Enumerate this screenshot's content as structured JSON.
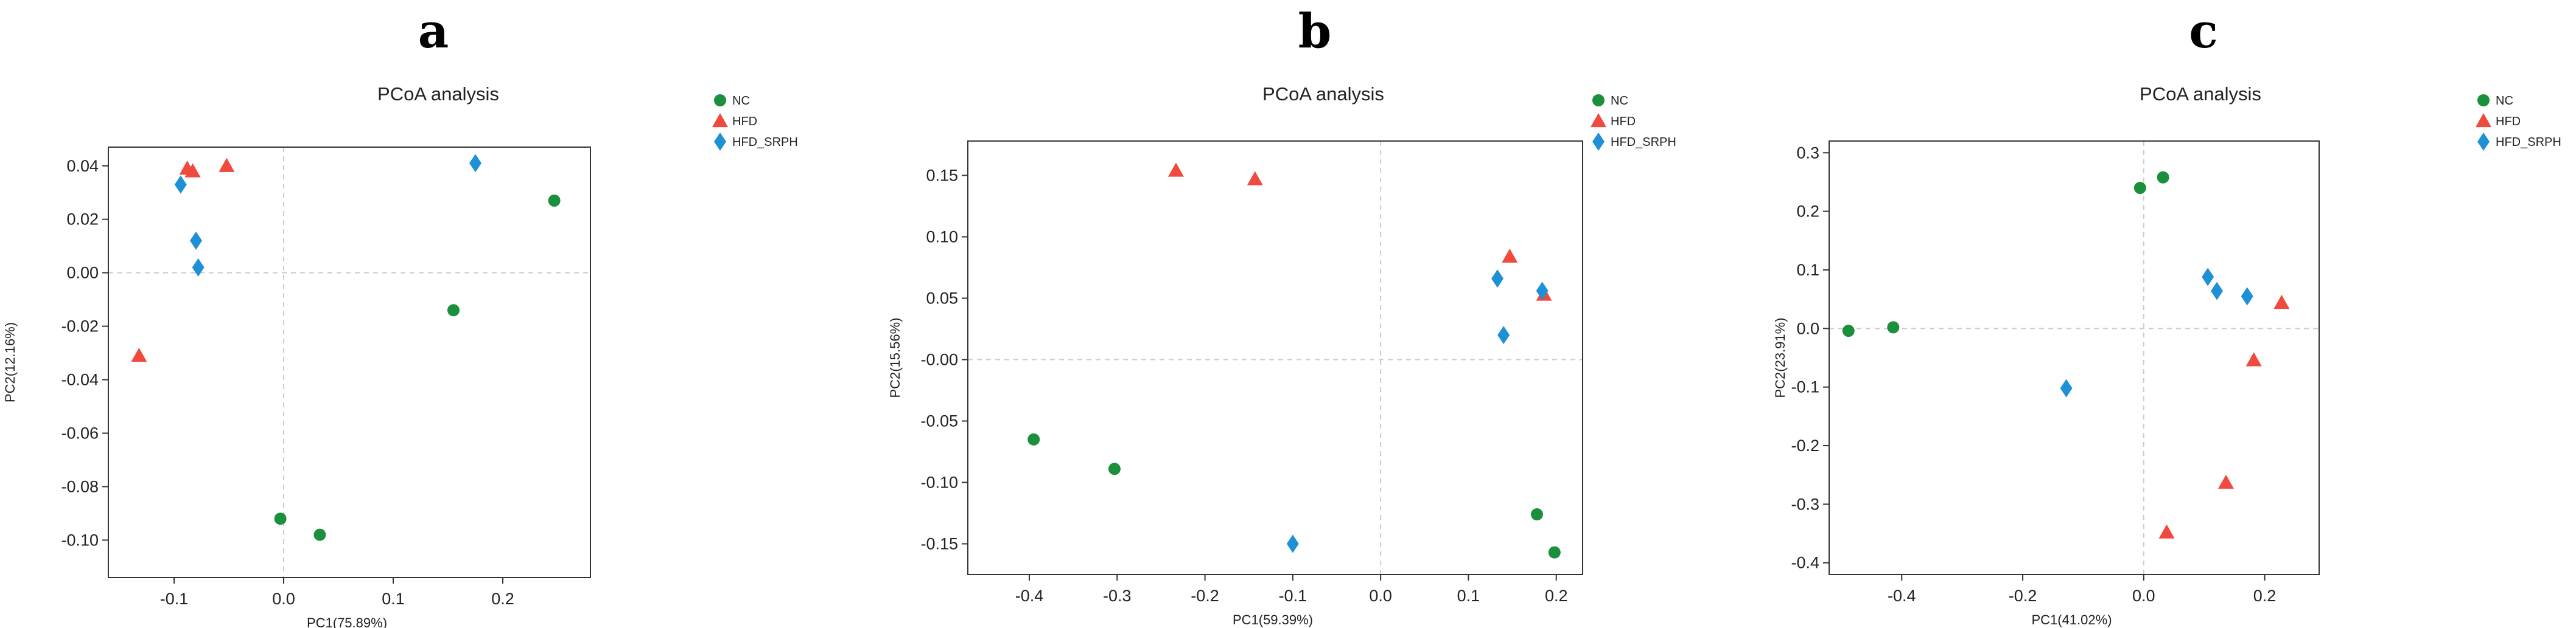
{
  "colors": {
    "NC": "#1a8f3c",
    "HFD": "#f04a3e",
    "HFD_SRPH": "#1e90d6"
  },
  "chart_data": [
    {
      "panel": "a",
      "type": "scatter",
      "title": "PCoA analysis",
      "xlabel": "PC1(75.89%)",
      "ylabel": "PC2(12.16%)",
      "xlim": [
        -0.16,
        0.28
      ],
      "ylim": [
        -0.114,
        0.047
      ],
      "xticks": [
        -0.1,
        0.0,
        0.1,
        0.2
      ],
      "xtick_labels": [
        "-0.1",
        "0.0",
        "0.1",
        "0.2"
      ],
      "yticks": [
        0.04,
        0.02,
        0.0,
        -0.02,
        -0.04,
        -0.06,
        -0.08,
        -0.1
      ],
      "ytick_labels": [
        "0.04",
        "0.02",
        "0.00",
        "-0.02",
        "-0.04",
        "-0.06",
        "-0.08",
        "-0.10"
      ],
      "legend": [
        "NC",
        "HFD",
        "HFD_SRPH"
      ],
      "series": [
        {
          "name": "NC",
          "marker": "circle",
          "points": [
            [
              0.247,
              0.027
            ],
            [
              0.155,
              -0.014
            ],
            [
              -0.003,
              -0.092
            ],
            [
              0.033,
              -0.098
            ]
          ]
        },
        {
          "name": "HFD",
          "marker": "triangle",
          "points": [
            [
              -0.088,
              0.039
            ],
            [
              -0.083,
              0.038
            ],
            [
              -0.052,
              0.04
            ],
            [
              -0.132,
              -0.031
            ]
          ]
        },
        {
          "name": "HFD_SRPH",
          "marker": "diamond",
          "points": [
            [
              -0.094,
              0.033
            ],
            [
              -0.08,
              0.012
            ],
            [
              -0.078,
              0.002
            ],
            [
              0.175,
              0.041
            ]
          ]
        }
      ]
    },
    {
      "panel": "b",
      "type": "scatter",
      "title": "PCoA analysis",
      "xlabel": "PC1(59.39%)",
      "ylabel": "PC2(15.56%)",
      "xlim": [
        -0.47,
        0.23
      ],
      "ylim": [
        -0.175,
        0.178
      ],
      "xticks": [
        -0.4,
        -0.3,
        -0.2,
        -0.1,
        0.0,
        0.1,
        0.2
      ],
      "xtick_labels": [
        "-0.4",
        "-0.3",
        "-0.2",
        "-0.1",
        "0.0",
        "0.1",
        "0.2"
      ],
      "yticks": [
        0.15,
        0.1,
        0.05,
        0.0,
        -0.05,
        -0.1,
        -0.15
      ],
      "ytick_labels": [
        "0.15",
        "0.10",
        "0.05",
        "-0.00",
        "-0.05",
        "-0.10",
        "-0.15"
      ],
      "legend": [
        "NC",
        "HFD",
        "HFD_SRPH"
      ],
      "series": [
        {
          "name": "NC",
          "marker": "circle",
          "points": [
            [
              -0.395,
              -0.065
            ],
            [
              -0.303,
              -0.089
            ],
            [
              0.178,
              -0.126
            ],
            [
              0.198,
              -0.157
            ]
          ]
        },
        {
          "name": "HFD",
          "marker": "triangle",
          "points": [
            [
              -0.233,
              0.154
            ],
            [
              -0.143,
              0.147
            ],
            [
              0.147,
              0.084
            ],
            [
              0.186,
              0.053
            ]
          ]
        },
        {
          "name": "HFD_SRPH",
          "marker": "diamond",
          "points": [
            [
              0.133,
              0.066
            ],
            [
              0.184,
              0.056
            ],
            [
              0.14,
              0.02
            ],
            [
              -0.1,
              -0.15
            ]
          ]
        }
      ]
    },
    {
      "panel": "c",
      "type": "scatter",
      "title": "PCoA analysis",
      "xlabel": "PC1(41.02%)",
      "ylabel": "PC2(23.91%)",
      "xlim": [
        -0.52,
        0.29
      ],
      "ylim": [
        -0.42,
        0.32
      ],
      "xticks": [
        -0.4,
        -0.2,
        0.0,
        0.2
      ],
      "xtick_labels": [
        "-0.4",
        "-0.2",
        "0.0",
        "0.2"
      ],
      "yticks": [
        0.3,
        0.2,
        0.1,
        0.0,
        -0.1,
        -0.2,
        -0.3,
        -0.4
      ],
      "ytick_labels": [
        "0.3",
        "0.2",
        "0.1",
        "0.0",
        "-0.1",
        "-0.2",
        "-0.3",
        "-0.4"
      ],
      "legend": [
        "NC",
        "HFD",
        "HFD_SRPH"
      ],
      "series": [
        {
          "name": "NC",
          "marker": "circle",
          "points": [
            [
              -0.488,
              -0.004
            ],
            [
              -0.414,
              0.002
            ],
            [
              -0.006,
              0.24
            ],
            [
              0.032,
              0.258
            ]
          ]
        },
        {
          "name": "HFD",
          "marker": "triangle",
          "points": [
            [
              0.228,
              0.044
            ],
            [
              0.182,
              -0.054
            ],
            [
              0.136,
              -0.263
            ],
            [
              0.038,
              -0.348
            ]
          ]
        },
        {
          "name": "HFD_SRPH",
          "marker": "diamond",
          "points": [
            [
              0.106,
              0.088
            ],
            [
              0.121,
              0.064
            ],
            [
              0.171,
              0.055
            ],
            [
              -0.128,
              -0.102
            ]
          ]
        }
      ]
    }
  ]
}
